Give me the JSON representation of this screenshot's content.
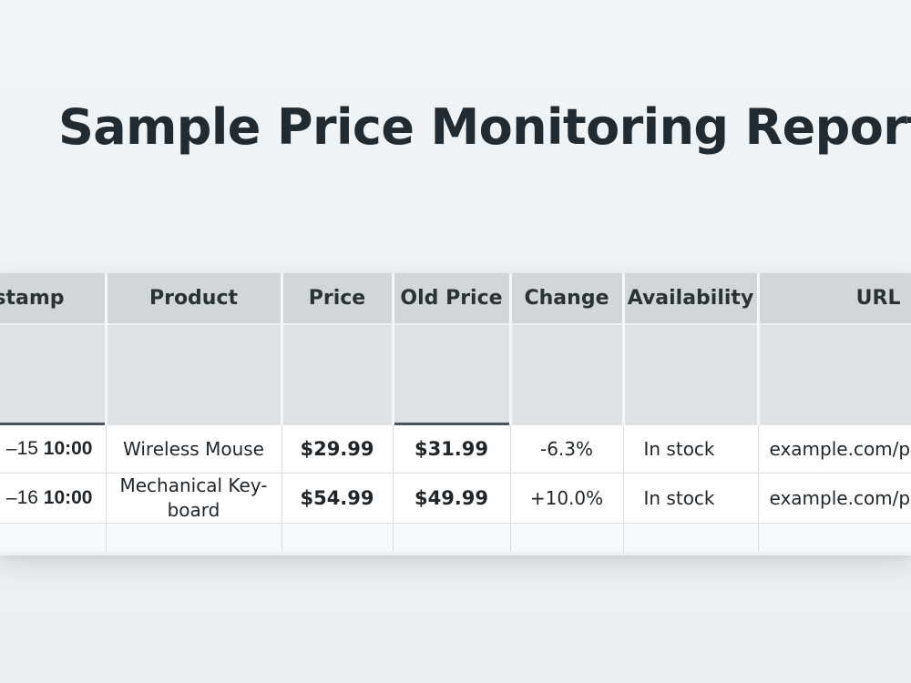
{
  "report": {
    "title": "Sample Price Monitoring Report"
  },
  "table": {
    "headers": {
      "timestamp": "stamp",
      "product": "Product",
      "price": "Price",
      "old_price": "Old Price",
      "change": "Change",
      "availability": "Availability",
      "url": "URL"
    },
    "rows": [
      {
        "timestamp_date": "–15",
        "timestamp_time": "10:00",
        "product": "Wireless Mouse",
        "price": "$29.99",
        "old_price": "$31.99",
        "change": "-6.3%",
        "change_direction": "down",
        "availability": "In stock",
        "url": "example.com/pr"
      },
      {
        "timestamp_date": "–16",
        "timestamp_time": "10:00",
        "product": "Mechanical Key-board",
        "price": "$54.99",
        "old_price": "$49.99",
        "change": "+10.0%",
        "change_direction": "up",
        "availability": "In stock",
        "url": "example.com/pr"
      }
    ]
  },
  "colors": {
    "change_down": "#2e9c47",
    "change_up": "#c8323a",
    "header_bg": "#d3d6d9"
  }
}
